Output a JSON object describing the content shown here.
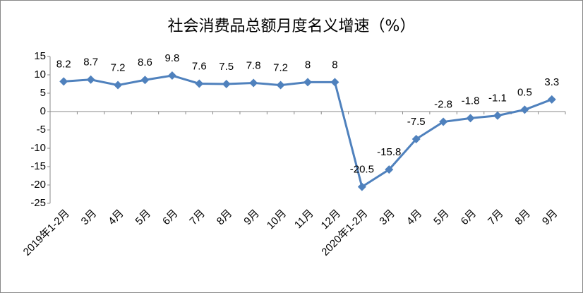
{
  "chart_data": {
    "type": "line",
    "title": "社会消费品总额月度名义增速（%）",
    "categories": [
      "2019年1-2月",
      "3月",
      "4月",
      "5月",
      "6月",
      "7月",
      "8月",
      "9月",
      "10月",
      "11月",
      "12月",
      "2020年1-2月",
      "3月",
      "4月",
      "5月",
      "6月",
      "7月",
      "8月",
      "9月"
    ],
    "series": [
      {
        "name": "社会消费品总额月度名义增速",
        "color": "#4f81bd",
        "values": [
          8.2,
          8.7,
          7.2,
          8.6,
          9.8,
          7.6,
          7.5,
          7.8,
          7.2,
          8,
          8,
          -20.5,
          -15.8,
          -7.5,
          -2.8,
          -1.8,
          -1.1,
          0.5,
          3.3
        ]
      }
    ],
    "ylim": [
      -25,
      15
    ],
    "yticks": [
      -25,
      -20,
      -15,
      -10,
      -5,
      0,
      5,
      10,
      15
    ],
    "grid": false
  }
}
